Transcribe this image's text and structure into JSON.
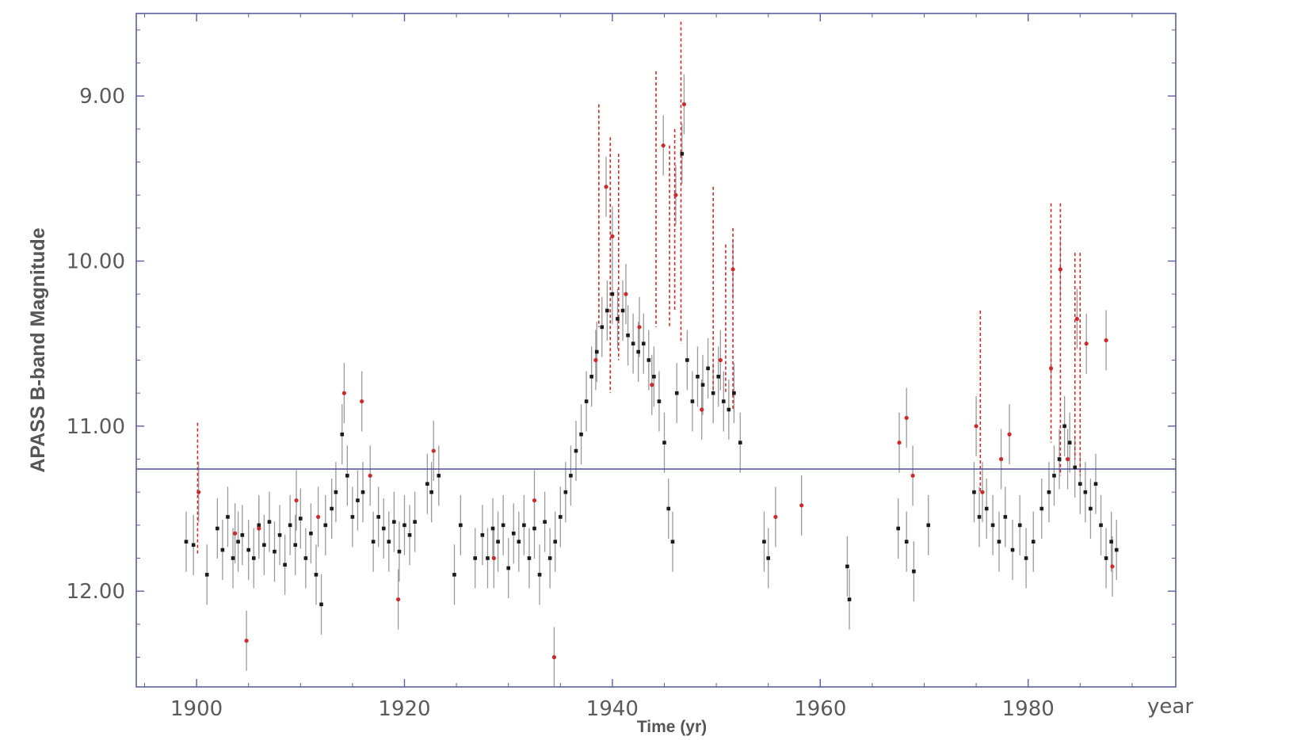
{
  "chart_data": {
    "type": "scatter",
    "title": "",
    "xlabel": "Time (yr)",
    "xunit_label": "year",
    "ylabel": "APASS B-band Magnitude",
    "xlim": [
      1894.2,
      1994.2
    ],
    "ylim": [
      12.58,
      8.5
    ],
    "y_inverted": true,
    "grid": false,
    "legend": "none",
    "x_ticks": [
      1900,
      1920,
      1940,
      1960,
      1980
    ],
    "x_tick_labels": [
      "1900",
      "1920",
      "1940",
      "1960",
      "1980"
    ],
    "y_ticks": [
      9.0,
      10.0,
      11.0,
      12.0
    ],
    "y_tick_labels": [
      "9.00",
      "10.00",
      "11.00",
      "12.00"
    ],
    "reference_line": {
      "y": 11.26,
      "color": "#4a4f9a"
    },
    "colors": {
      "frame": "#5b5f9f",
      "points_black": "#1a1a1a",
      "points_red": "#cc2a2a",
      "errorbar": "#9a9a9a",
      "upper_limit": "#cc2a2a"
    },
    "series": [
      {
        "marker": "black-square",
        "x": [
          1899.0,
          1899.7,
          1901.0,
          1902.0,
          1902.5,
          1903.0,
          1903.5,
          1904.0,
          1904.4,
          1905.0,
          1905.5,
          1906.0,
          1906.5,
          1907.0,
          1907.5,
          1908.0,
          1908.5,
          1909.0,
          1909.5,
          1910.0,
          1910.5,
          1911.0,
          1911.5,
          1912.0,
          1912.4,
          1913.0,
          1913.4,
          1914.0,
          1914.5,
          1915.0,
          1915.5,
          1916.0,
          1917.0,
          1917.5,
          1918.0,
          1918.5,
          1919.0,
          1919.5,
          1920.0,
          1920.5,
          1921.0,
          1922.2,
          1922.6,
          1923.3,
          1924.8,
          1925.4,
          1926.8,
          1927.5,
          1928.0,
          1928.5,
          1929.0,
          1929.5,
          1930.0,
          1930.5,
          1931.0,
          1931.5,
          1932.0,
          1932.5,
          1933.0,
          1933.5,
          1934.0,
          1934.5,
          1935.0,
          1935.5,
          1936.0,
          1936.5,
          1937.0,
          1937.5,
          1938.0,
          1938.5,
          1939.0,
          1939.5,
          1940.0,
          1940.5,
          1941.0,
          1941.5,
          1942.0,
          1942.5,
          1943.0,
          1943.5,
          1944.0,
          1944.5,
          1945.0,
          1945.4,
          1945.8,
          1946.2,
          1946.7,
          1947.2,
          1947.7,
          1948.2,
          1948.7,
          1949.2,
          1949.7,
          1950.2,
          1950.7,
          1951.2,
          1951.7,
          1952.3,
          1954.6,
          1955.0,
          1962.6,
          1962.8,
          1967.5,
          1968.3,
          1969.0,
          1970.4,
          1974.8,
          1975.3,
          1976.0,
          1976.6,
          1977.2,
          1977.8,
          1978.5,
          1979.2,
          1979.8,
          1980.5,
          1981.3,
          1982.0,
          1982.5,
          1983.0,
          1983.5,
          1984.0,
          1984.5,
          1985.0,
          1985.5,
          1986.0,
          1986.5,
          1987.0,
          1987.5,
          1988.0,
          1988.5
        ],
        "y": [
          11.7,
          11.72,
          11.9,
          11.62,
          11.75,
          11.55,
          11.8,
          11.7,
          11.66,
          11.75,
          11.8,
          11.6,
          11.72,
          11.58,
          11.76,
          11.66,
          11.84,
          11.6,
          11.72,
          11.56,
          11.8,
          11.65,
          11.9,
          12.08,
          11.6,
          11.5,
          11.4,
          11.05,
          11.3,
          11.55,
          11.45,
          11.4,
          11.7,
          11.55,
          11.62,
          11.7,
          11.58,
          11.76,
          11.6,
          11.66,
          11.58,
          11.35,
          11.4,
          11.3,
          11.9,
          11.6,
          11.8,
          11.66,
          11.8,
          11.62,
          11.7,
          11.6,
          11.86,
          11.65,
          11.7,
          11.6,
          11.8,
          11.62,
          11.9,
          11.58,
          11.8,
          11.7,
          11.55,
          11.4,
          11.3,
          11.15,
          11.05,
          10.85,
          10.7,
          10.55,
          10.4,
          10.3,
          10.2,
          10.35,
          10.3,
          10.45,
          10.5,
          10.55,
          10.5,
          10.6,
          10.7,
          10.85,
          11.1,
          11.5,
          11.7,
          10.8,
          9.35,
          10.6,
          10.85,
          10.7,
          10.75,
          10.65,
          10.8,
          10.7,
          10.85,
          10.9,
          10.8,
          11.1,
          11.7,
          11.8,
          11.85,
          12.05,
          11.62,
          11.7,
          11.88,
          11.6,
          11.4,
          11.55,
          11.5,
          11.6,
          11.7,
          11.55,
          11.75,
          11.6,
          11.8,
          11.7,
          11.5,
          11.4,
          11.3,
          11.2,
          11.0,
          11.1,
          11.25,
          11.35,
          11.4,
          11.5,
          11.35,
          11.6,
          11.8,
          11.7,
          11.75
        ]
      },
      {
        "marker": "red-dot",
        "x": [
          1900.2,
          1903.7,
          1904.8,
          1906.0,
          1909.6,
          1911.7,
          1914.2,
          1915.9,
          1916.7,
          1919.4,
          1922.8,
          1928.6,
          1932.5,
          1934.4,
          1938.4,
          1939.4,
          1940.0,
          1941.3,
          1942.6,
          1943.8,
          1944.9,
          1946.1,
          1946.9,
          1948.6,
          1950.4,
          1951.6,
          1955.7,
          1958.2,
          1967.6,
          1968.3,
          1968.9,
          1975.0,
          1975.6,
          1977.4,
          1978.2,
          1982.2,
          1983.1,
          1983.8,
          1984.7,
          1985.6,
          1987.5,
          1988.1
        ],
        "y": [
          11.4,
          11.65,
          12.3,
          11.62,
          11.45,
          11.55,
          10.8,
          10.85,
          11.3,
          12.05,
          11.15,
          11.8,
          11.45,
          12.4,
          10.6,
          9.55,
          9.85,
          10.2,
          10.4,
          10.75,
          9.3,
          9.6,
          9.05,
          10.9,
          10.6,
          10.05,
          11.55,
          11.48,
          11.1,
          10.95,
          11.3,
          11.0,
          11.4,
          11.2,
          11.05,
          10.65,
          10.05,
          11.2,
          10.35,
          10.5,
          10.48,
          11.85
        ]
      },
      {
        "marker": "upper-limit",
        "x": [
          1900.1,
          1938.7,
          1939.8,
          1940.6,
          1944.2,
          1945.5,
          1946.0,
          1946.6,
          1949.7,
          1950.9,
          1951.6,
          1975.4,
          1982.2,
          1983.1,
          1984.5,
          1985.0
        ],
        "top": [
          10.98,
          9.05,
          9.25,
          9.35,
          8.85,
          9.3,
          9.2,
          8.55,
          9.55,
          9.9,
          9.8,
          10.3,
          9.65,
          9.65,
          9.95,
          9.95
        ],
        "bottom": [
          11.78,
          10.4,
          10.8,
          10.6,
          10.4,
          10.4,
          10.3,
          10.5,
          10.8,
          10.8,
          10.9,
          11.4,
          11.1,
          11.3,
          11.2,
          11.3
        ]
      }
    ]
  }
}
